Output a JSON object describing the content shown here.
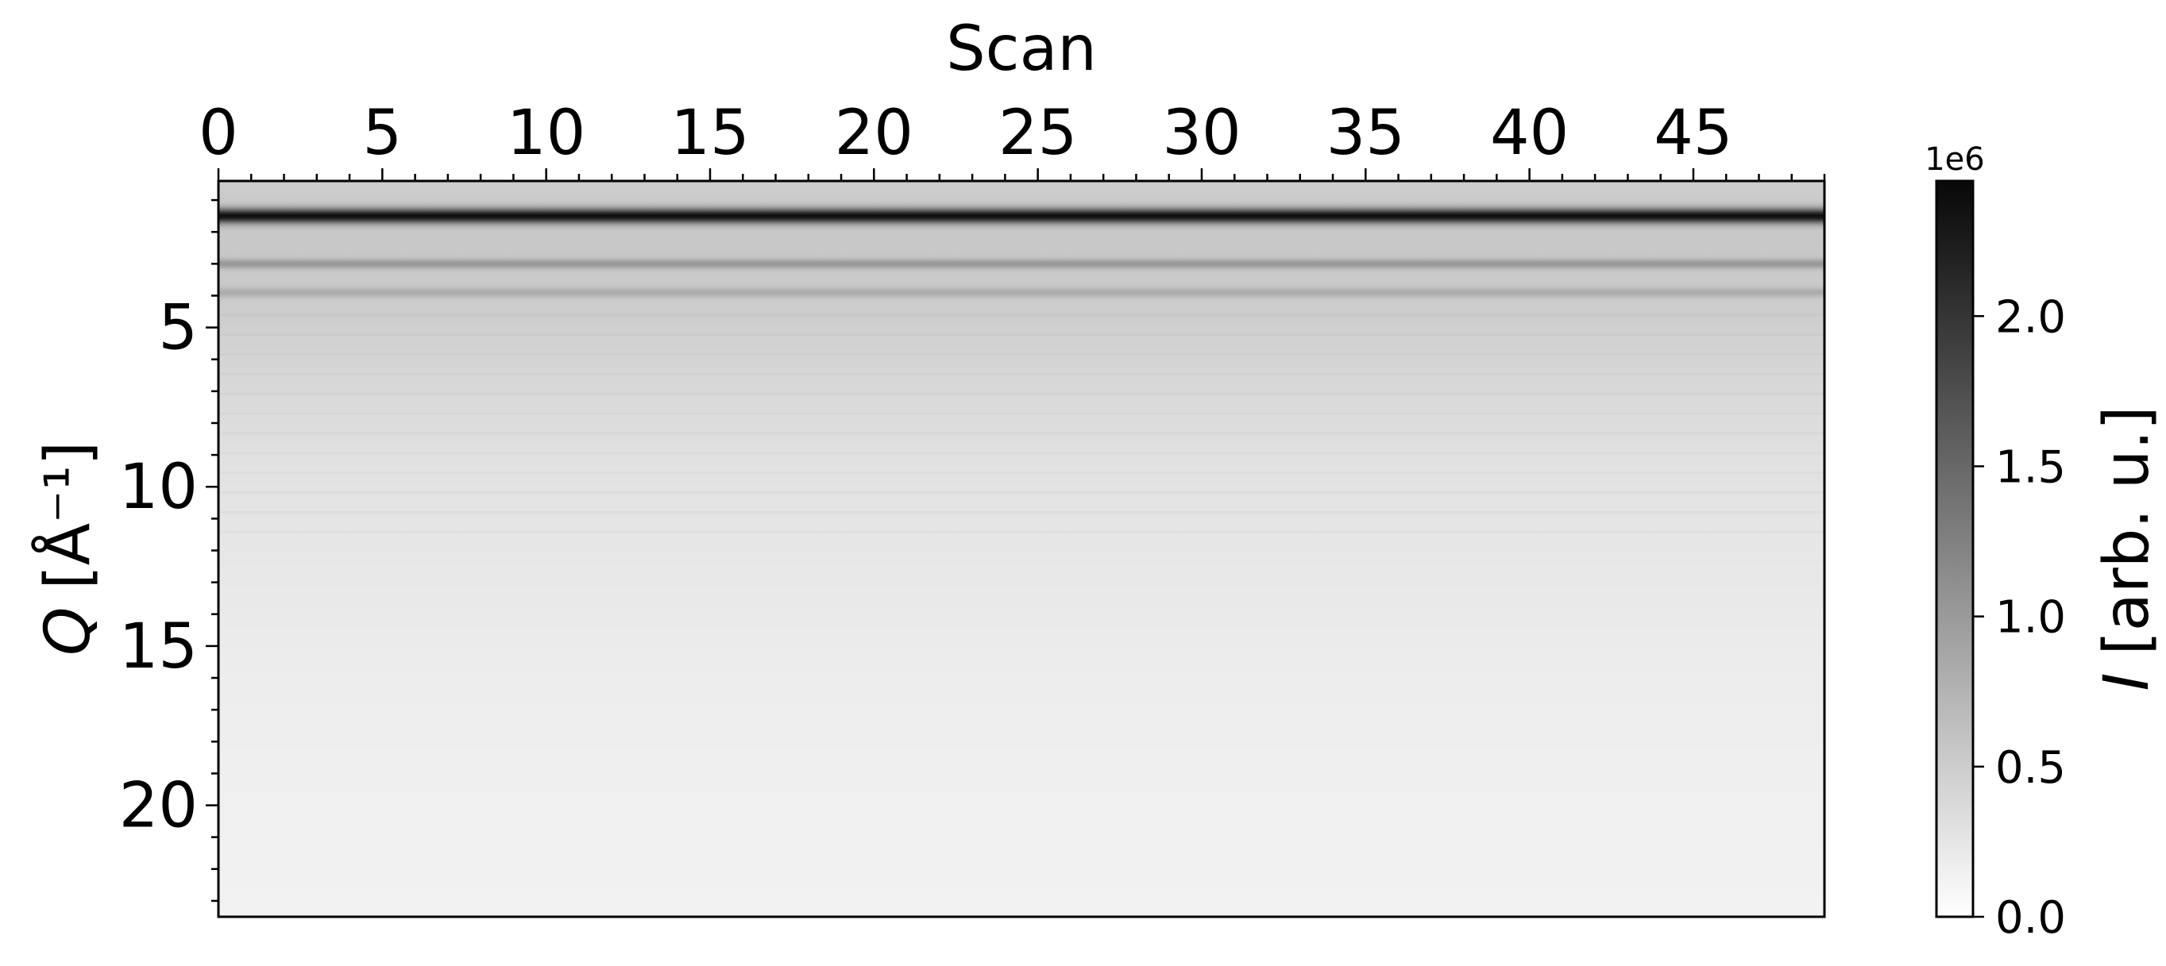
{
  "chart_data": {
    "type": "heatmap",
    "title": "",
    "xlabel": "Scan",
    "ylabel_symbol": "Q",
    "ylabel_unit": "[Å⁻¹]",
    "x_axis_position": "top",
    "xlim": [
      0,
      49
    ],
    "ylim": [
      23.5,
      0.4
    ],
    "y_inverted": true,
    "x_ticks": [
      0,
      5,
      10,
      15,
      20,
      25,
      30,
      35,
      40,
      45
    ],
    "x_tick_labels": [
      "0",
      "5",
      "10",
      "15",
      "20",
      "25",
      "30",
      "35",
      "40",
      "45"
    ],
    "y_ticks": [
      5,
      10,
      15,
      20
    ],
    "y_tick_labels": [
      "5",
      "10",
      "15",
      "20"
    ],
    "grid": false,
    "colormap": "gray_r",
    "colorbar": {
      "label_symbol": "I",
      "label_unit": "[arb. u.]",
      "exponent_label": "1e6",
      "range": [
        0.0,
        2.45
      ],
      "ticks": [
        0.0,
        0.5,
        1.0,
        1.5,
        2.0
      ],
      "tick_labels": [
        "0.0",
        "0.5",
        "1.0",
        "1.5",
        "2.0"
      ]
    },
    "bands": [
      {
        "q": 1.5,
        "intensity": 2.4
      },
      {
        "q": 3.0,
        "intensity": 1.05
      },
      {
        "q": 3.9,
        "intensity": 0.85
      },
      {
        "q": 5.3,
        "intensity": 0.45
      }
    ],
    "background_profile": [
      {
        "q": 0.4,
        "intensity": 0.5
      },
      {
        "q": 2.5,
        "intensity": 0.55
      },
      {
        "q": 4.5,
        "intensity": 0.5
      },
      {
        "q": 6.5,
        "intensity": 0.4
      },
      {
        "q": 9.0,
        "intensity": 0.3
      },
      {
        "q": 12.0,
        "intensity": 0.24
      },
      {
        "q": 16.0,
        "intensity": 0.18
      },
      {
        "q": 20.0,
        "intensity": 0.15
      },
      {
        "q": 23.5,
        "intensity": 0.13
      }
    ]
  }
}
